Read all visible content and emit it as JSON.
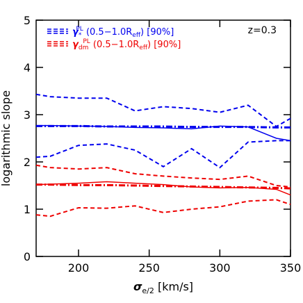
{
  "chart_data": {
    "type": "line",
    "y_label": "logarithmic slope",
    "x_label_parts": [
      "σ",
      "e/2",
      " [km/s]"
    ],
    "annotation": "z=0.3",
    "x": [
      170,
      180,
      200,
      220,
      240,
      260,
      280,
      300,
      320,
      340,
      350
    ],
    "series": [
      {
        "name_parts": [
          "γ",
          "*",
          "PL",
          " (0.5−1.0R",
          "eff",
          ") [90%]"
        ],
        "color": "#0000ee",
        "values": [
          2.77,
          2.77,
          2.76,
          2.75,
          2.73,
          2.72,
          2.7,
          2.76,
          2.74,
          2.5,
          2.45
        ],
        "upper": [
          3.43,
          3.38,
          3.35,
          3.35,
          3.08,
          3.17,
          3.13,
          3.05,
          3.2,
          2.75,
          2.92
        ],
        "lower": [
          2.1,
          2.12,
          2.35,
          2.38,
          2.25,
          1.9,
          2.28,
          1.88,
          2.42,
          2.45,
          2.45
        ],
        "fit": [
          2.76,
          2.76,
          2.76,
          2.75,
          2.75,
          2.75,
          2.74,
          2.74,
          2.74,
          2.73,
          2.73
        ]
      },
      {
        "name_parts": [
          "γ",
          "dm",
          "PL",
          " (0.5−1.0R",
          "eff",
          ") [90%]"
        ],
        "color": "#ee0000",
        "values": [
          1.52,
          1.53,
          1.55,
          1.58,
          1.55,
          1.52,
          1.47,
          1.45,
          1.46,
          1.42,
          1.3
        ],
        "upper": [
          1.93,
          1.88,
          1.85,
          1.88,
          1.75,
          1.7,
          1.66,
          1.63,
          1.7,
          1.5,
          1.47
        ],
        "lower": [
          0.88,
          0.85,
          1.03,
          1.02,
          1.07,
          0.93,
          1.0,
          1.05,
          1.17,
          1.2,
          1.1
        ],
        "fit": [
          1.52,
          1.52,
          1.51,
          1.51,
          1.5,
          1.49,
          1.48,
          1.47,
          1.46,
          1.45,
          1.44
        ]
      }
    ],
    "xlim": [
      170,
      350
    ],
    "xticks": [
      200,
      250,
      300,
      350
    ],
    "ylim": [
      0,
      5
    ],
    "yticks": [
      0,
      1,
      2,
      3,
      4,
      5
    ]
  }
}
